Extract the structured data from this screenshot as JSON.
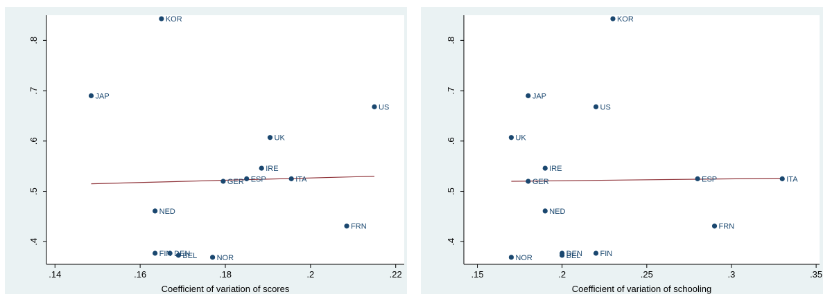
{
  "chart_data": [
    {
      "type": "scatter",
      "xlabel": "Coefficient of variation of scores",
      "ylabel": "",
      "xlim": [
        0.138,
        0.222
      ],
      "ylim": [
        0.355,
        0.85
      ],
      "xticks": [
        0.14,
        0.16,
        0.18,
        0.2,
        0.22
      ],
      "xtick_labels": [
        ".14",
        ".16",
        ".18",
        ".2",
        ".22"
      ],
      "yticks": [
        0.4,
        0.5,
        0.6,
        0.7,
        0.8
      ],
      "ytick_labels": [
        ".4",
        ".5",
        ".6",
        ".7",
        ".8"
      ],
      "grid": false,
      "points": [
        {
          "label": "KOR",
          "x": 0.165,
          "y": 0.843
        },
        {
          "label": "JAP",
          "x": 0.1485,
          "y": 0.69
        },
        {
          "label": "US",
          "x": 0.215,
          "y": 0.668
        },
        {
          "label": "UK",
          "x": 0.1905,
          "y": 0.607
        },
        {
          "label": "IRE",
          "x": 0.1885,
          "y": 0.546
        },
        {
          "label": "ESP",
          "x": 0.185,
          "y": 0.525
        },
        {
          "label": "ITA",
          "x": 0.1955,
          "y": 0.525
        },
        {
          "label": "GER",
          "x": 0.1795,
          "y": 0.52
        },
        {
          "label": "NED",
          "x": 0.1635,
          "y": 0.461
        },
        {
          "label": "FRN",
          "x": 0.2085,
          "y": 0.431
        },
        {
          "label": "FIN",
          "x": 0.1635,
          "y": 0.377
        },
        {
          "label": "DEN",
          "x": 0.167,
          "y": 0.377
        },
        {
          "label": "BEL",
          "x": 0.169,
          "y": 0.373
        },
        {
          "label": "NOR",
          "x": 0.177,
          "y": 0.369
        }
      ],
      "fit_line": {
        "x": [
          0.1485,
          0.215
        ],
        "y": [
          0.515,
          0.53
        ],
        "color": "#90353b"
      },
      "marker_color": "#1a476f",
      "background_color": "#eaf2f3"
    },
    {
      "type": "scatter",
      "xlabel": "Coefficient of variation of schooling",
      "ylabel": "",
      "xlim": [
        0.142,
        0.352
      ],
      "ylim": [
        0.355,
        0.85
      ],
      "xticks": [
        0.15,
        0.2,
        0.25,
        0.3,
        0.35
      ],
      "xtick_labels": [
        ".15",
        ".2",
        ".25",
        ".3",
        ".35"
      ],
      "yticks": [
        0.4,
        0.5,
        0.6,
        0.7,
        0.8
      ],
      "ytick_labels": [
        ".4",
        ".5",
        ".6",
        ".7",
        ".8"
      ],
      "grid": false,
      "points": [
        {
          "label": "KOR",
          "x": 0.23,
          "y": 0.843
        },
        {
          "label": "JAP",
          "x": 0.18,
          "y": 0.69
        },
        {
          "label": "US",
          "x": 0.22,
          "y": 0.668
        },
        {
          "label": "UK",
          "x": 0.17,
          "y": 0.607
        },
        {
          "label": "IRE",
          "x": 0.19,
          "y": 0.546
        },
        {
          "label": "ESP",
          "x": 0.28,
          "y": 0.525
        },
        {
          "label": "ITA",
          "x": 0.33,
          "y": 0.525
        },
        {
          "label": "GER",
          "x": 0.18,
          "y": 0.52
        },
        {
          "label": "NED",
          "x": 0.19,
          "y": 0.461
        },
        {
          "label": "FRN",
          "x": 0.29,
          "y": 0.431
        },
        {
          "label": "FIN",
          "x": 0.22,
          "y": 0.377
        },
        {
          "label": "DEN",
          "x": 0.2,
          "y": 0.377
        },
        {
          "label": "BEL",
          "x": 0.2,
          "y": 0.373
        },
        {
          "label": "NOR",
          "x": 0.17,
          "y": 0.369
        }
      ],
      "fit_line": {
        "x": [
          0.17,
          0.33
        ],
        "y": [
          0.52,
          0.526
        ],
        "color": "#90353b"
      },
      "marker_color": "#1a476f",
      "background_color": "#eaf2f3"
    }
  ]
}
